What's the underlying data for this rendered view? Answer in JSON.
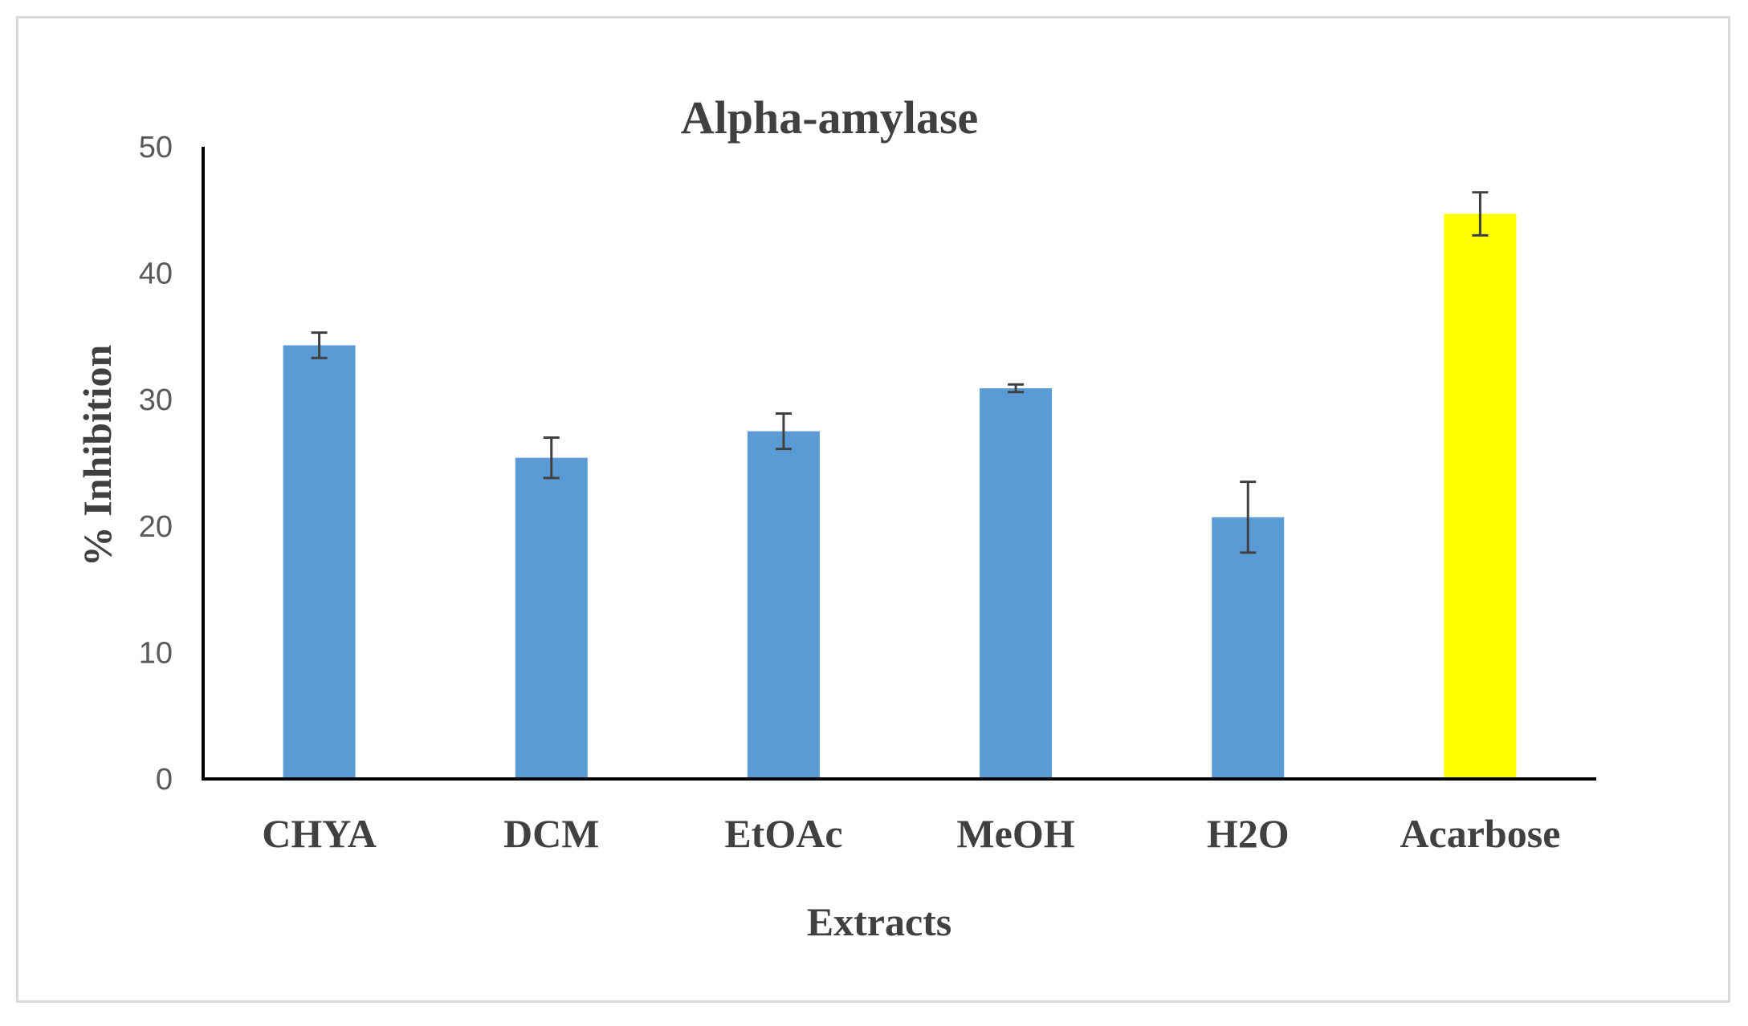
{
  "chart_data": {
    "type": "bar",
    "title": "Alpha-amylase",
    "xlabel": "Extracts",
    "ylabel": "% Inhibition",
    "categories": [
      "CHYA",
      "DCM",
      "EtOAc",
      "MeOH",
      "H2O",
      "Acarbose"
    ],
    "values": [
      34.3,
      25.4,
      27.5,
      30.9,
      20.7,
      44.7
    ],
    "errors": [
      1.0,
      1.6,
      1.4,
      0.3,
      2.8,
      1.7
    ],
    "colors": [
      "#5b9bd5",
      "#5b9bd5",
      "#5b9bd5",
      "#5b9bd5",
      "#5b9bd5",
      "#ffff00"
    ],
    "yticks": [
      0,
      10,
      20,
      30,
      40,
      50
    ],
    "ylim": [
      0,
      50
    ],
    "grid": false,
    "legend": "none"
  }
}
